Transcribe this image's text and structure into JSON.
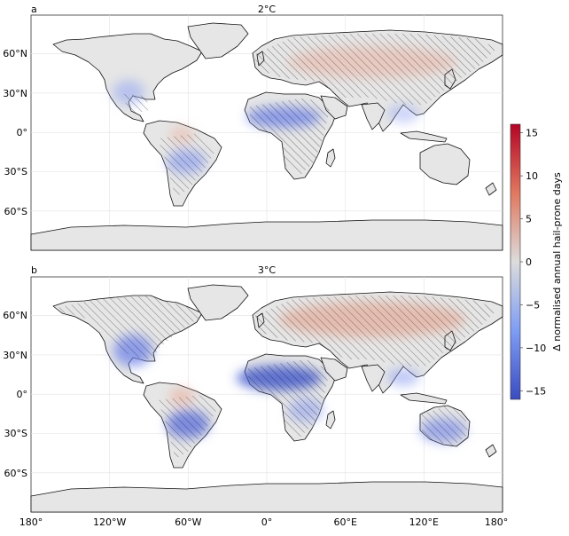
{
  "panels": [
    {
      "letter": "a",
      "title": "2°C"
    },
    {
      "letter": "b",
      "title": "3°C"
    }
  ],
  "lat_ticks": [
    "60°N",
    "30°N",
    "0°",
    "30°S",
    "60°S"
  ],
  "lon_ticks": [
    "180°",
    "120°W",
    "60°W",
    "0°",
    "60°E",
    "120°E",
    "180°"
  ],
  "colorbar": {
    "label": "Δ normalised annual hail-prone days",
    "ticks": [
      "15",
      "10",
      "5",
      "0",
      "−5",
      "−10",
      "−15"
    ],
    "range": [
      -16,
      16
    ],
    "colormap": "coolwarm",
    "low_color": "#3a4cc0",
    "mid_color": "#dcdcdc",
    "high_color": "#b40426"
  },
  "colors": {
    "land": "#e6e6e6",
    "ocean": "#ffffff",
    "coast": "#111111",
    "hatch": "#222222"
  }
}
